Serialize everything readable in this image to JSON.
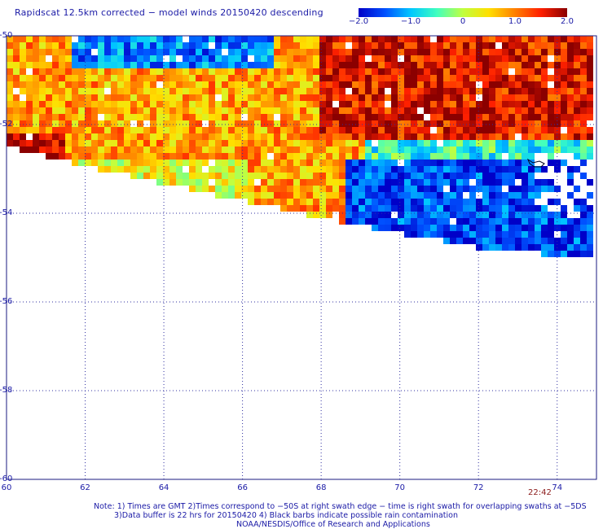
{
  "title": "Rapidscat 12.5km corrected − model winds 20150420 descending",
  "colorbar": {
    "min": -2.0,
    "max": 2.0,
    "tick_labels": [
      "−2.0",
      "−1.0",
      "0",
      "1.0",
      "2.0"
    ],
    "tick_values": [
      -2.0,
      -1.0,
      0,
      1.0,
      2.0
    ],
    "colors": [
      "#0000c8",
      "#0050ff",
      "#00c8ff",
      "#40ffc0",
      "#c0ff40",
      "#ffe000",
      "#ff8000",
      "#ff2000",
      "#8b0000"
    ]
  },
  "map": {
    "lon_range": [
      60,
      75
    ],
    "lat_range": [
      -60,
      -50
    ],
    "lat_labels": [
      "-50",
      "-52",
      "-54",
      "-56",
      "-58",
      "-60"
    ],
    "lat_values": [
      -50,
      -52,
      -54,
      -56,
      -58,
      -60
    ],
    "lon_labels": [
      "60",
      "62",
      "64",
      "66",
      "68",
      "70",
      "72",
      "74"
    ],
    "lon_values": [
      60,
      62,
      64,
      66,
      68,
      70,
      72,
      74
    ],
    "grid": true,
    "time_label": "22:42"
  },
  "notes": {
    "line1": "Note: 1) Times are GMT 2)Times correspond to −50S at right swath edge − time is right swath for overlapping swaths at −5DS",
    "line2": "3)Data buffer is 22 hrs for 20150420 4) Black barbs indicate possible rain contamination",
    "line3": "NOAA/NESDIS/Office of Research and Applications"
  }
}
